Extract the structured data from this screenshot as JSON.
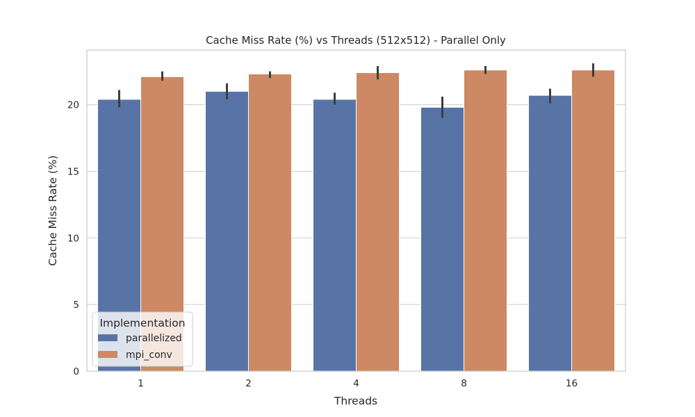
{
  "chart_data": {
    "type": "bar",
    "title": "Cache Miss Rate (%) vs Threads (512x512) - Parallel Only",
    "xlabel": "Threads",
    "ylabel": "Cache Miss Rate (%)",
    "categories": [
      "1",
      "2",
      "4",
      "8",
      "16"
    ],
    "ylim": [
      0,
      24.1
    ],
    "yticks": [
      0,
      5,
      10,
      15,
      20
    ],
    "grid": true,
    "legend": {
      "title": "Implementation",
      "position": "lower-left"
    },
    "series": [
      {
        "name": "parallelized",
        "color": "#5874a6",
        "values": [
          20.4,
          21.0,
          20.4,
          19.8,
          20.7
        ],
        "ci": [
          [
            19.8,
            21.1
          ],
          [
            20.4,
            21.6
          ],
          [
            20.0,
            20.9
          ],
          [
            19.0,
            20.6
          ],
          [
            20.1,
            21.2
          ]
        ]
      },
      {
        "name": "mpi_conv",
        "color": "#cc8963",
        "values": [
          22.1,
          22.3,
          22.4,
          22.6,
          22.6
        ],
        "ci": [
          [
            21.8,
            22.5
          ],
          [
            22.0,
            22.5
          ],
          [
            21.9,
            22.9
          ],
          [
            22.3,
            22.9
          ],
          [
            22.1,
            23.1
          ]
        ]
      }
    ]
  }
}
